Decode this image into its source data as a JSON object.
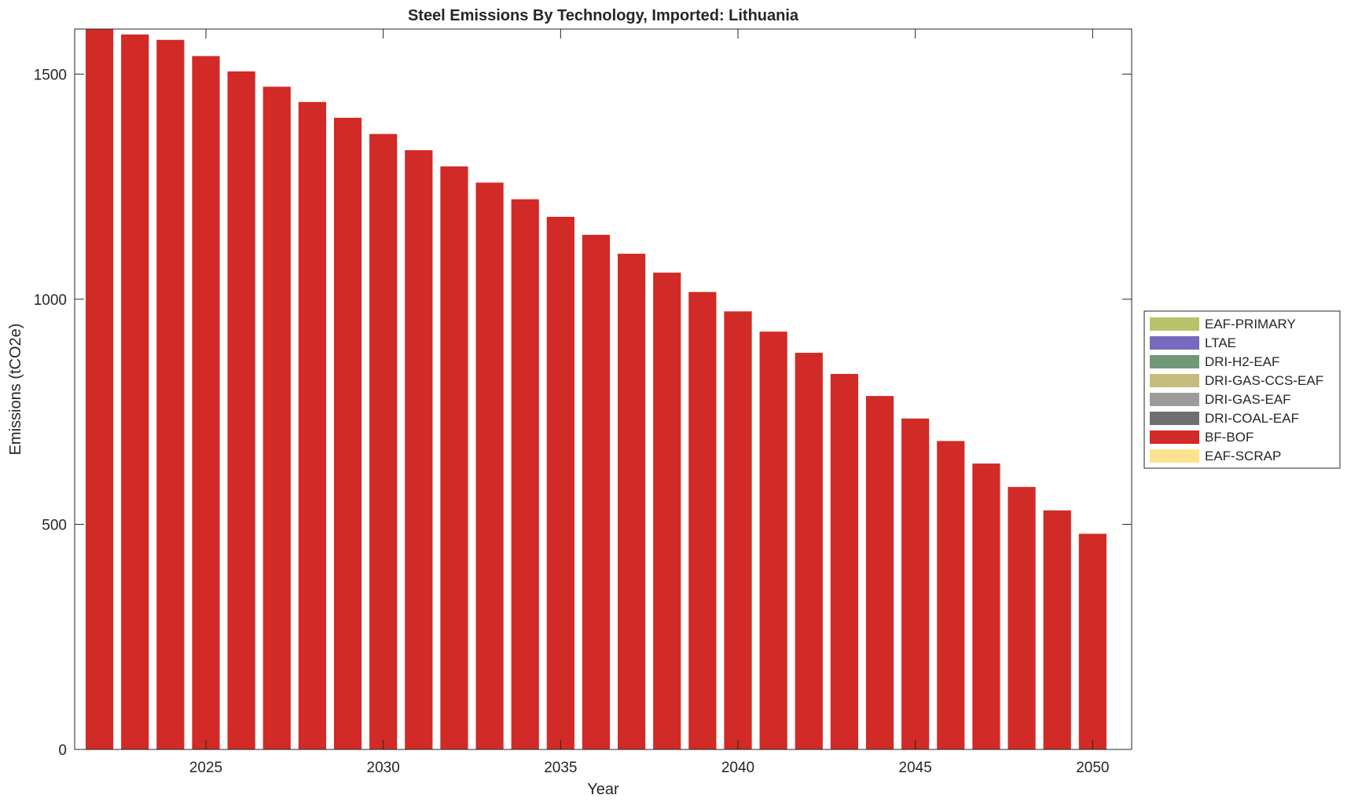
{
  "chart_data": {
    "type": "bar",
    "stacked": true,
    "title": "Steel Emissions By Technology, Imported: Lithuania",
    "xlabel": "Year",
    "ylabel": "Emissions (tCO2e)",
    "xlim": [
      2021.3,
      2051.1
    ],
    "ylim": [
      0,
      1600
    ],
    "xticks": [
      2025,
      2030,
      2035,
      2040,
      2045,
      2050
    ],
    "yticks": [
      0,
      500,
      1000,
      1500
    ],
    "grid": false,
    "legend_position": "right",
    "categories": [
      2022,
      2023,
      2024,
      2025,
      2026,
      2027,
      2028,
      2029,
      2030,
      2031,
      2032,
      2033,
      2034,
      2035,
      2036,
      2037,
      2038,
      2039,
      2040,
      2041,
      2042,
      2043,
      2044,
      2045,
      2046,
      2047,
      2048,
      2049,
      2050
    ],
    "series": [
      {
        "name": "EAF-PRIMARY",
        "color": "#b8c26a",
        "values": [
          0,
          0,
          0,
          0,
          0,
          0,
          0,
          0,
          0,
          0,
          0,
          0,
          0,
          0,
          0,
          0,
          0,
          0,
          0,
          0,
          0,
          0,
          0,
          0,
          0,
          0,
          0,
          0,
          0
        ]
      },
      {
        "name": "LTAE",
        "color": "#7669be",
        "values": [
          0,
          0,
          0,
          0,
          0,
          0,
          0,
          0,
          0,
          0,
          0,
          0,
          0,
          0,
          0,
          0,
          0,
          0,
          0,
          0,
          0,
          0,
          0,
          0,
          0,
          0,
          0,
          0,
          0
        ]
      },
      {
        "name": "DRI-H2-EAF",
        "color": "#6e9877",
        "values": [
          0,
          0,
          0,
          0,
          0,
          0,
          0,
          0,
          0,
          0,
          0,
          0,
          0,
          0,
          0,
          0,
          0,
          0,
          0,
          0,
          0,
          0,
          0,
          0,
          0,
          0,
          0,
          0,
          0
        ]
      },
      {
        "name": "DRI-GAS-CCS-EAF",
        "color": "#c7bc7c",
        "values": [
          0,
          0,
          0,
          0,
          0,
          0,
          0,
          0,
          0,
          0,
          0,
          0,
          0,
          0,
          0,
          0,
          0,
          0,
          0,
          0,
          0,
          0,
          0,
          0,
          0,
          0,
          0,
          0,
          0
        ]
      },
      {
        "name": "DRI-GAS-EAF",
        "color": "#9c9c9c",
        "values": [
          0,
          0,
          0,
          0,
          0,
          0,
          0,
          0,
          0,
          0,
          0,
          0,
          0,
          0,
          0,
          0,
          0,
          0,
          0,
          0,
          0,
          0,
          0,
          0,
          0,
          0,
          0,
          0,
          0
        ]
      },
      {
        "name": "DRI-COAL-EAF",
        "color": "#6f6f6f",
        "values": [
          0,
          0,
          0,
          0,
          0,
          0,
          0,
          0,
          0,
          0,
          0,
          0,
          0,
          0,
          0,
          0,
          0,
          0,
          0,
          0,
          0,
          0,
          0,
          0,
          0,
          0,
          0,
          0,
          0
        ]
      },
      {
        "name": "BF-BOF",
        "color": "#d22a26",
        "values": [
          1600,
          1588,
          1576,
          1540,
          1506,
          1472,
          1438,
          1403,
          1367,
          1331,
          1295,
          1259,
          1222,
          1183,
          1143,
          1101,
          1059,
          1016,
          973,
          928,
          881,
          834,
          785,
          735,
          685,
          635,
          583,
          531,
          479
        ]
      },
      {
        "name": "EAF-SCRAP",
        "color": "#fde38f",
        "values": [
          0,
          0,
          0,
          0,
          0,
          0,
          0,
          0,
          0,
          0,
          0,
          0,
          0,
          0,
          0,
          0,
          0,
          0,
          0,
          0,
          0,
          0,
          0,
          0,
          0,
          0,
          0,
          0,
          0
        ]
      }
    ]
  }
}
